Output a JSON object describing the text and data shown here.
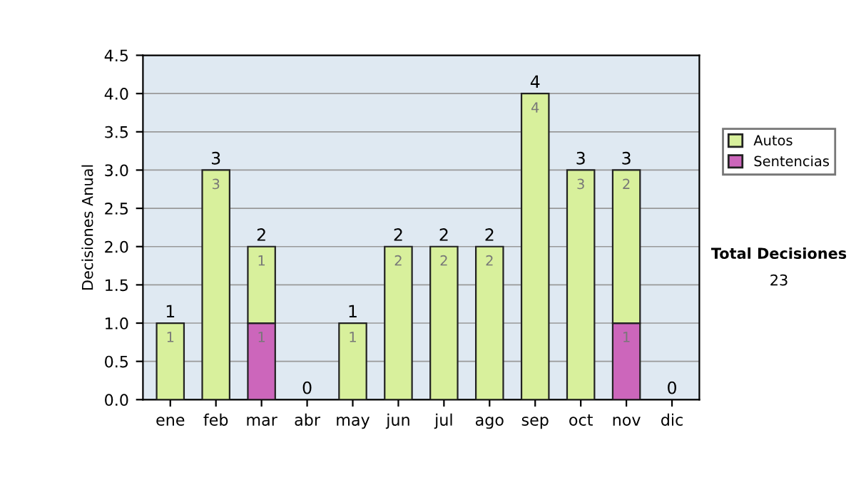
{
  "chart_data": {
    "type": "bar",
    "ylabel": "Decisiones Anual",
    "categories": [
      "ene",
      "feb",
      "mar",
      "abr",
      "may",
      "jun",
      "jul",
      "ago",
      "sep",
      "oct",
      "nov",
      "dic"
    ],
    "stacked": true,
    "series": [
      {
        "name": "Sentencias",
        "color": "#cc66bb",
        "values": [
          0,
          0,
          1,
          0,
          0,
          0,
          0,
          0,
          0,
          0,
          1,
          0
        ],
        "value_labels": [
          null,
          null,
          "1",
          null,
          null,
          null,
          null,
          null,
          null,
          null,
          "1",
          null
        ]
      },
      {
        "name": "Autos",
        "color": "#d8f09c",
        "values": [
          1,
          3,
          1,
          0,
          1,
          2,
          2,
          2,
          4,
          3,
          2,
          0
        ],
        "value_labels": [
          "1",
          "3",
          "1",
          null,
          "1",
          "2",
          "2",
          "2",
          "4",
          "3",
          "2",
          null
        ]
      }
    ],
    "totals": [
      "1",
      "3",
      "2",
      "0",
      "1",
      "2",
      "2",
      "2",
      "4",
      "3",
      "3",
      "0"
    ],
    "ylim": [
      0,
      4.5
    ],
    "yticks": [
      {
        "value": 0,
        "label": "0.0"
      },
      {
        "value": 0.5,
        "label": "0.5"
      },
      {
        "value": 1,
        "label": "1.0"
      },
      {
        "value": 1.5,
        "label": "1.5"
      },
      {
        "value": 2,
        "label": "2.0"
      },
      {
        "value": 2.5,
        "label": "2.5"
      },
      {
        "value": 3,
        "label": "3.0"
      },
      {
        "value": 3.5,
        "label": "3.5"
      },
      {
        "value": 4,
        "label": "4.0"
      },
      {
        "value": 4.5,
        "label": "4.5"
      }
    ],
    "grid": "y",
    "legend": "right",
    "annotations": [
      "Total Decisiones",
      "23"
    ]
  }
}
